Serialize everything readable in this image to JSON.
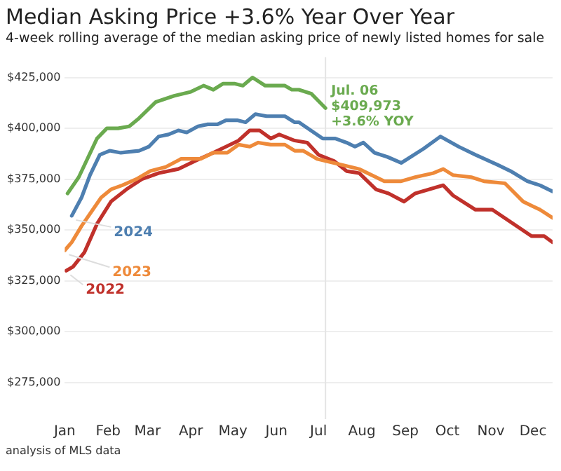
{
  "chart_data": {
    "type": "line",
    "title": "Median Asking Price +3.6% Year Over Year",
    "subtitle": "4-week rolling average of the median asking price of newly listed homes for sale",
    "xlim": [
      "--01-01",
      "--12-15"
    ],
    "xticks": [
      {
        "value": "--01-01",
        "label": "Jan"
      },
      {
        "value": "--02-01",
        "label": "Feb"
      },
      {
        "value": "--03-01",
        "label": "Mar"
      },
      {
        "value": "--04-01",
        "label": "Apr"
      },
      {
        "value": "--05-01",
        "label": "May"
      },
      {
        "value": "--06-01",
        "label": "Jun"
      },
      {
        "value": "--07-01",
        "label": "Jul"
      },
      {
        "value": "--08-01",
        "label": "Aug"
      },
      {
        "value": "--09-01",
        "label": "Sep"
      },
      {
        "value": "--10-01",
        "label": "Oct"
      },
      {
        "value": "--11-01",
        "label": "Nov"
      },
      {
        "value": "--12-01",
        "label": "Dec"
      }
    ],
    "ylim": [
      257000,
      435000
    ],
    "yticks": [
      {
        "value": 275000,
        "label": "$275,000"
      },
      {
        "value": 300000,
        "label": "$300,000"
      },
      {
        "value": 325000,
        "label": "$325,000"
      },
      {
        "value": 350000,
        "label": "$350,000"
      },
      {
        "value": 375000,
        "label": "$375,000"
      },
      {
        "value": 400000,
        "label": "$400,000"
      },
      {
        "value": 425000,
        "label": "$425,000"
      }
    ],
    "grid": "y",
    "legend": false,
    "marker": "none",
    "line_style": "solid",
    "ref_lines": [
      {
        "axis": "x",
        "value": "--07-06",
        "color": "#e4e4e4"
      }
    ],
    "series": [
      {
        "color": "#6aaa4f",
        "x": [
          "--01-03",
          "--01-11",
          "--01-24",
          "--01-31",
          "--02-08",
          "--02-16",
          "--02-23",
          "--03-07",
          "--03-20",
          "--04-01",
          "--04-10",
          "--04-17",
          "--04-24",
          "--05-02",
          "--05-08",
          "--05-15",
          "--05-24",
          "--06-07",
          "--06-12",
          "--06-17",
          "--06-26",
          "--07-06"
        ],
        "values": [
          368000,
          376000,
          395000,
          400000,
          400000,
          401000,
          405000,
          413000,
          416000,
          418000,
          421000,
          419000,
          422000,
          422000,
          421000,
          425000,
          421000,
          421000,
          419000,
          419000,
          417000,
          409973
        ]
      },
      {
        "name": "2024",
        "color": "#4e7fb0",
        "x": [
          "--01-06",
          "--01-13",
          "--01-19",
          "--01-26",
          "--02-02",
          "--02-10",
          "--02-23",
          "--03-02",
          "--03-09",
          "--03-16",
          "--03-23",
          "--03-29",
          "--04-06",
          "--04-13",
          "--04-20",
          "--04-26",
          "--05-04",
          "--05-10",
          "--05-17",
          "--05-25",
          "--06-07",
          "--06-14",
          "--06-17",
          "--07-04",
          "--07-13",
          "--07-21",
          "--07-27",
          "--08-02",
          "--08-10",
          "--08-19",
          "--08-29",
          "--09-14",
          "--09-26",
          "--10-09",
          "--10-21",
          "--11-06",
          "--11-15",
          "--11-27",
          "--12-06",
          "--12-15"
        ],
        "values": [
          357000,
          366000,
          377000,
          387000,
          389000,
          388000,
          389000,
          391000,
          396000,
          397000,
          399000,
          398000,
          401000,
          402000,
          402000,
          404000,
          404000,
          403000,
          407000,
          406000,
          406000,
          403000,
          403000,
          395000,
          395000,
          393000,
          391000,
          393000,
          388000,
          386000,
          383000,
          390000,
          396000,
          391000,
          387000,
          382000,
          379000,
          374000,
          372000,
          369000
        ]
      },
      {
        "name": "2023",
        "color": "#ee8a3a",
        "x": [
          "--01-01",
          "--01-06",
          "--01-13",
          "--01-19",
          "--01-27",
          "--02-03",
          "--02-11",
          "--02-21",
          "--03-03",
          "--03-14",
          "--03-25",
          "--04-08",
          "--04-17",
          "--04-27",
          "--05-05",
          "--05-13",
          "--05-19",
          "--05-28",
          "--06-07",
          "--06-14",
          "--06-20",
          "--06-30",
          "--07-12",
          "--07-24",
          "--07-30",
          "--08-08",
          "--08-17",
          "--08-29",
          "--09-08",
          "--09-21",
          "--09-28",
          "--10-05",
          "--10-18",
          "--10-27",
          "--11-11",
          "--11-24",
          "--12-06",
          "--12-15"
        ],
        "values": [
          340000,
          344000,
          352000,
          358000,
          366000,
          370000,
          372000,
          375000,
          379000,
          381000,
          385000,
          385000,
          388000,
          388000,
          392000,
          391000,
          393000,
          392000,
          392000,
          389000,
          389000,
          385000,
          383000,
          381000,
          380000,
          377000,
          374000,
          374000,
          376000,
          378000,
          380000,
          377000,
          376000,
          374000,
          373000,
          364000,
          360000,
          356000
        ]
      },
      {
        "name": "2022",
        "color": "#c0312b",
        "x": [
          "--01-02",
          "--01-07",
          "--01-15",
          "--01-24",
          "--02-03",
          "--02-14",
          "--02-25",
          "--03-09",
          "--03-23",
          "--04-04",
          "--04-17",
          "--04-26",
          "--05-05",
          "--05-13",
          "--05-20",
          "--05-28",
          "--06-03",
          "--06-14",
          "--06-23",
          "--07-01",
          "--07-12",
          "--07-21",
          "--07-30",
          "--08-11",
          "--08-20",
          "--08-31",
          "--09-08",
          "--09-28",
          "--10-05",
          "--10-21",
          "--11-02",
          "--11-15",
          "--11-30",
          "--12-09",
          "--12-15"
        ],
        "values": [
          330000,
          332000,
          339000,
          353000,
          364000,
          370000,
          375000,
          378000,
          380000,
          384000,
          388000,
          391000,
          394000,
          399000,
          399000,
          395000,
          397000,
          394000,
          393000,
          387000,
          384000,
          379000,
          378000,
          370000,
          368000,
          364000,
          368000,
          372000,
          367000,
          360000,
          360000,
          354000,
          347000,
          347000,
          344000
        ]
      }
    ],
    "annotations": [
      {
        "text": "Jul. 06\n$409,973\n+3.6% YOY",
        "x": "--07-06",
        "y": 409973
      },
      "analysis of MLS data"
    ]
  }
}
